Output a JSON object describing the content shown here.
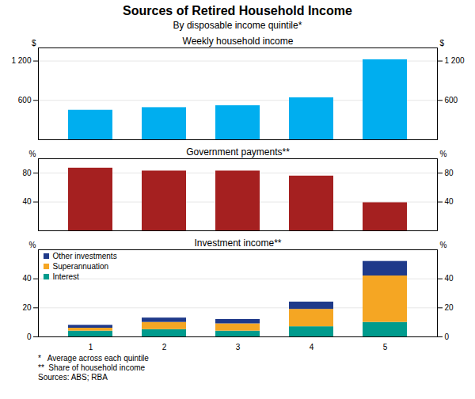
{
  "title": "Sources of Retired Household Income",
  "subtitle": "By disposable income quintile*",
  "annotations": [
    "*   Average across each quintile",
    "**  Share of household income",
    "Sources: ABS; RBA"
  ],
  "chart_data": [
    {
      "type": "bar",
      "title": "Weekly household income",
      "ylabel": "$",
      "y2label": "$",
      "categories": [
        "1",
        "2",
        "3",
        "4",
        "5"
      ],
      "values": [
        450,
        490,
        520,
        640,
        1220
      ],
      "color": "#00AEEF",
      "ylim": [
        0,
        1400
      ],
      "yticks": [
        600,
        {
          "value": 1200,
          "label": "1 200"
        }
      ],
      "y2lim": [
        0,
        1400
      ],
      "y2ticks": [
        600,
        {
          "value": 1200,
          "label": "1 200"
        }
      ],
      "grid": true,
      "tick_labels": "y"
    },
    {
      "type": "bar",
      "title": "Government payments**",
      "ylabel": "%",
      "y2label": "%",
      "categories": [
        "1",
        "2",
        "3",
        "4",
        "5"
      ],
      "values": [
        87,
        83,
        83,
        76,
        39
      ],
      "color": "#A52020",
      "ylim": [
        0,
        100
      ],
      "yticks": [
        40,
        80
      ],
      "y2lim": [
        0,
        100
      ],
      "y2ticks": [
        40,
        80
      ],
      "grid": true,
      "tick_labels": "y"
    },
    {
      "type": "bar",
      "title": "Investment income**",
      "ylabel": "%",
      "y2label": "%",
      "categories": [
        "1",
        "2",
        "3",
        "4",
        "5"
      ],
      "series": [
        {
          "name": "Interest",
          "color": "#009B8D",
          "values": [
            4,
            5,
            4,
            7,
            10
          ]
        },
        {
          "name": "Superannuation",
          "color": "#F5A623",
          "values": [
            2,
            5,
            5,
            12,
            32
          ]
        },
        {
          "name": "Other investments",
          "color": "#1F3A8A",
          "values": [
            2,
            3,
            3,
            5,
            10
          ]
        }
      ],
      "stacked": true,
      "legend": "upper left",
      "ylim": [
        0,
        60
      ],
      "yticks": [
        0,
        20,
        40
      ],
      "y2lim": [
        0,
        60
      ],
      "y2ticks": [
        0,
        20,
        40
      ],
      "grid": true
    }
  ]
}
